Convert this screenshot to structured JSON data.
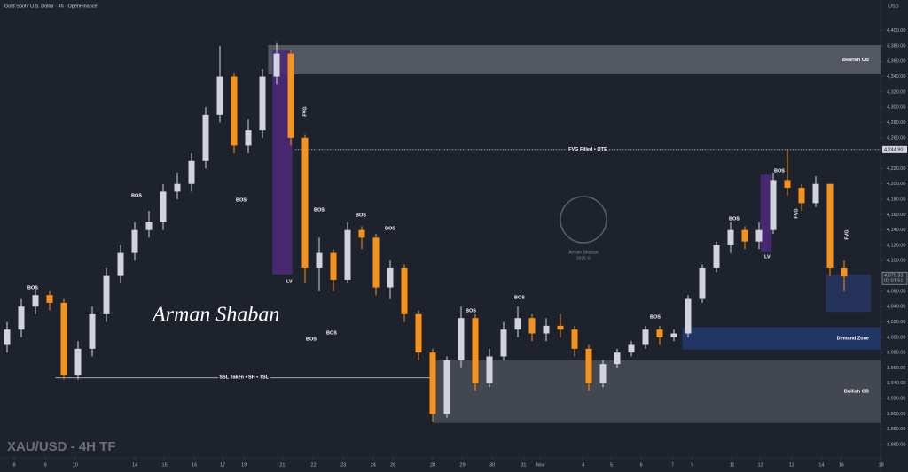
{
  "chart_data": {
    "type": "candlestick",
    "title": "Gold Spot / U.S. Dollar · 4h · OpenFinance",
    "currency": "USD",
    "watermark": "XAU/USD - 4H TF",
    "signature": "Arman Shaban",
    "logo": "Arman Shaban",
    "logo_year": "2025 ©",
    "open": [
      3990,
      4010,
      4040,
      4055,
      4045,
      3950,
      3985,
      4030,
      4080,
      4110,
      4140,
      4150,
      4190,
      4200,
      4230,
      4290,
      4340,
      4250,
      4270,
      4340,
      4370,
      4260,
      4090,
      4110,
      4075,
      4140,
      4130,
      4065,
      4090,
      4030,
      3980,
      3900,
      3970,
      4025,
      3940,
      3975,
      4010,
      4025,
      4005,
      4015,
      4010,
      3985,
      3940,
      3965,
      3980,
      3990,
      4010,
      4000,
      4005,
      4050,
      4090,
      4120,
      4140,
      4125,
      4140,
      4205,
      4195,
      4175,
      4200,
      4090
    ],
    "high": [
      4020,
      4050,
      4062,
      4060,
      4050,
      3995,
      4040,
      4090,
      4120,
      4150,
      4165,
      4200,
      4215,
      4240,
      4300,
      4380,
      4345,
      4285,
      4350,
      4385,
      4375,
      4265,
      4130,
      4115,
      4150,
      4145,
      4135,
      4100,
      4095,
      4035,
      3985,
      3975,
      4040,
      4030,
      3985,
      4020,
      4040,
      4030,
      4025,
      4030,
      4015,
      3990,
      3970,
      3985,
      3995,
      4015,
      4015,
      4010,
      4055,
      4095,
      4125,
      4150,
      4145,
      4150,
      4215,
      4245,
      4200,
      4210,
      4200,
      4100
    ],
    "low": [
      3980,
      4000,
      4030,
      4035,
      3945,
      3945,
      3975,
      4020,
      4070,
      4100,
      4130,
      4140,
      4180,
      4190,
      4220,
      4280,
      4240,
      4240,
      4260,
      4330,
      4250,
      4070,
      4060,
      4060,
      4070,
      4115,
      4055,
      4050,
      4020,
      3970,
      3890,
      3895,
      3960,
      3930,
      3935,
      3970,
      4000,
      3995,
      3995,
      4000,
      3975,
      3930,
      3935,
      3960,
      3975,
      3985,
      3990,
      3995,
      4000,
      4045,
      4085,
      4110,
      4115,
      4115,
      4135,
      4185,
      4165,
      4170,
      4080,
      4060
    ],
    "close": [
      4010,
      4040,
      4055,
      4045,
      3950,
      3985,
      4030,
      4080,
      4110,
      4140,
      4150,
      4190,
      4200,
      4230,
      4290,
      4340,
      4250,
      4270,
      4340,
      4370,
      4260,
      4090,
      4110,
      4075,
      4140,
      4130,
      4065,
      4090,
      4030,
      3980,
      3900,
      3970,
      4025,
      3940,
      3975,
      4010,
      4025,
      4005,
      4015,
      4010,
      3985,
      3940,
      3965,
      3980,
      3990,
      4010,
      4000,
      4005,
      4050,
      4090,
      4120,
      4140,
      4125,
      4140,
      4205,
      4195,
      4175,
      4200,
      4090,
      4079.33
    ],
    "colors": {
      "up": "#d1d4dc",
      "down": "#f7931a"
    },
    "xlim": [
      -0.5,
      61.5625
    ],
    "xticks": [
      {
        "value": 0.5,
        "label": "8"
      },
      {
        "value": 2.7,
        "label": "9"
      },
      {
        "value": 4.8,
        "label": "10"
      },
      {
        "value": 9,
        "label": "14"
      },
      {
        "value": 11.1,
        "label": "15"
      },
      {
        "value": 13.2,
        "label": "16"
      },
      {
        "value": 15.2,
        "label": "17"
      },
      {
        "value": 16.7,
        "label": "19"
      },
      {
        "value": 19.4,
        "label": "21"
      },
      {
        "value": 21.6,
        "label": "22"
      },
      {
        "value": 23.7,
        "label": "23"
      },
      {
        "value": 25.8,
        "label": "24"
      },
      {
        "value": 27.2,
        "label": "26"
      },
      {
        "value": 30,
        "label": "28"
      },
      {
        "value": 32.1,
        "label": "29"
      },
      {
        "value": 34.2,
        "label": "30"
      },
      {
        "value": 36.4,
        "label": "31"
      },
      {
        "value": 37.6,
        "label": "Nov"
      },
      {
        "value": 40.6,
        "label": "4"
      },
      {
        "value": 42.6,
        "label": "5"
      },
      {
        "value": 44.7,
        "label": "6"
      },
      {
        "value": 46.9,
        "label": "7"
      },
      {
        "value": 48.3,
        "label": "9"
      },
      {
        "value": 51.1,
        "label": "11"
      },
      {
        "value": 53.1,
        "label": "12"
      },
      {
        "value": 55.3,
        "label": "13"
      },
      {
        "value": 57.4,
        "label": "14"
      },
      {
        "value": 58.8,
        "label": "16"
      },
      {
        "value": 61.6,
        "label": "18"
      }
    ],
    "ylim": [
      3845,
      4440
    ],
    "yticks": [
      {
        "value": 3860,
        "label": "3,860.00"
      },
      {
        "value": 3880,
        "label": "3,880.00"
      },
      {
        "value": 3900,
        "label": "3,900.00"
      },
      {
        "value": 3920,
        "label": "3,920.00"
      },
      {
        "value": 3940,
        "label": "3,940.00"
      },
      {
        "value": 3960,
        "label": "3,960.00"
      },
      {
        "value": 3980,
        "label": "3,980.00"
      },
      {
        "value": 4000,
        "label": "4,000.00"
      },
      {
        "value": 4020,
        "label": "4,020.00"
      },
      {
        "value": 4040,
        "label": "4,040.00"
      },
      {
        "value": 4060,
        "label": "4,060.00"
      },
      {
        "value": 4100,
        "label": "4,100.00"
      },
      {
        "value": 4120,
        "label": "4,120.00"
      },
      {
        "value": 4140,
        "label": "4,140.00"
      },
      {
        "value": 4160,
        "label": "4,160.00"
      },
      {
        "value": 4180,
        "label": "4,180.00"
      },
      {
        "value": 4200,
        "label": "4,200.00"
      },
      {
        "value": 4220,
        "label": "4,220.00"
      },
      {
        "value": 4260,
        "label": "4,260.00"
      },
      {
        "value": 4280,
        "label": "4,280.00"
      },
      {
        "value": 4300,
        "label": "4,300.00"
      },
      {
        "value": 4320,
        "label": "4,320.00"
      },
      {
        "value": 4340,
        "label": "4,340.00"
      },
      {
        "value": 4360,
        "label": "4,360.00"
      },
      {
        "value": 4380,
        "label": "4,380.00"
      },
      {
        "value": 4400,
        "label": "4,400.00"
      }
    ],
    "zones": [
      {
        "name": "Bearish OB",
        "range": [
          4343,
          4381
        ],
        "from": 18.4,
        "color": "#5d606b"
      },
      {
        "name": "Bullish OB",
        "range": [
          3888,
          3970
        ],
        "from": 30,
        "color": "#4a4d57"
      },
      {
        "name": "Demand Zone",
        "range": [
          3984,
          4013
        ],
        "from": 47.6,
        "color": "#223a6e"
      }
    ],
    "boxes": [
      {
        "range": [
          4082,
          4374
        ],
        "x": [
          18.7,
          20.1
        ],
        "color": "#4a2a78"
      },
      {
        "range": [
          4111,
          4212
        ],
        "x": [
          53.1,
          53.9
        ],
        "color": "#4a2a78"
      },
      {
        "range": [
          4033,
          4082
        ],
        "x": [
          57.7,
          60.9
        ],
        "color": "#26345e"
      }
    ],
    "levels": [
      {
        "name": "FVG Filled • OTE",
        "value": 4244.9,
        "from": 20.3,
        "label": "4,244.90"
      },
      {
        "name": "SSL Taken • SH • TSL",
        "value": 3947,
        "from": 3.4,
        "to": 30
      }
    ],
    "last_price_label": "4,079.33",
    "countdown": "02:01:51",
    "bos": "BOS",
    "fvg": "FVG",
    "lv": "LV"
  }
}
